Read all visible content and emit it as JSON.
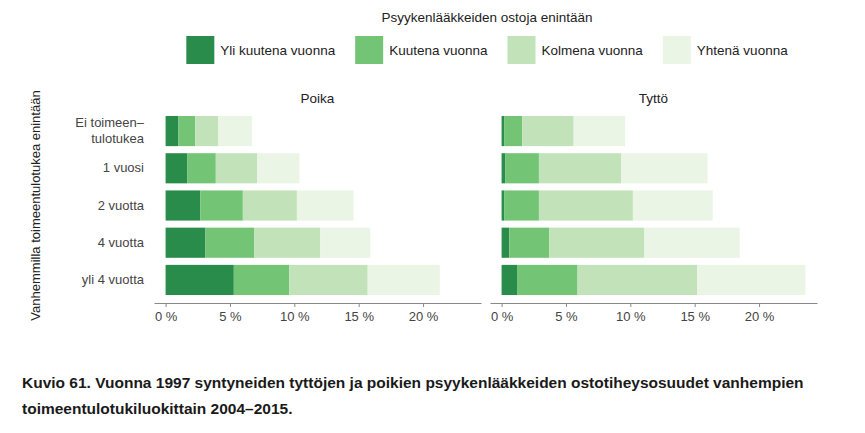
{
  "chart_data": {
    "type": "bar",
    "orientation": "horizontal",
    "stacked": true,
    "grid": false,
    "legend": "top",
    "title": "Kuvio 61. Vuonna 1997 syntyneiden tyttöjen ja poikien psyykenlääkkeiden ostotiheysosuudet vanhempien toimeentulotukiluokittain 2004–2015.",
    "legend_title": "Psyykenlääkkeiden ostoja enintään",
    "y_label": "Vanhemmilla toimeentulotukea enintään",
    "categories": [
      "Ei toimeen–\ntulotukea",
      "1 vuosi",
      "2 vuotta",
      "4 vuotta",
      "yli 4 vuotta"
    ],
    "series": [
      {
        "name": "Yli kuutena vuonna",
        "color": "#2a8c4a"
      },
      {
        "name": "Kuutena vuonna",
        "color": "#74c476"
      },
      {
        "name": "Kolmena vuonna",
        "color": "#c2e3b9"
      },
      {
        "name": "Yhtenä vuonna",
        "color": "#ebf5e6"
      }
    ],
    "facets": [
      {
        "title": "Poika",
        "series": [
          {
            "values": [
              1.0,
              1.7,
              2.7,
              3.1,
              5.3
            ]
          },
          {
            "values": [
              1.3,
              2.2,
              3.3,
              3.8,
              4.3
            ]
          },
          {
            "values": [
              1.8,
              3.2,
              4.2,
              5.1,
              6.1
            ]
          },
          {
            "values": [
              2.6,
              3.3,
              4.4,
              3.9,
              5.6
            ]
          }
        ]
      },
      {
        "title": "Tyttö",
        "series": [
          {
            "values": [
              0.2,
              0.3,
              0.2,
              0.6,
              1.2
            ]
          },
          {
            "values": [
              1.4,
              2.6,
              2.7,
              3.1,
              4.7
            ]
          },
          {
            "values": [
              4.0,
              6.4,
              7.3,
              7.4,
              9.3
            ]
          },
          {
            "values": [
              4.0,
              6.7,
              6.2,
              7.4,
              8.4
            ]
          }
        ]
      }
    ],
    "xlim": [
      -0.9,
      24.5
    ],
    "xticks": [
      {
        "value": 0,
        "label": "0 %"
      },
      {
        "value": 5,
        "label": "5 %"
      },
      {
        "value": 10,
        "label": "10 %"
      },
      {
        "value": 15,
        "label": "15 %"
      },
      {
        "value": 20,
        "label": "20 %"
      }
    ]
  }
}
